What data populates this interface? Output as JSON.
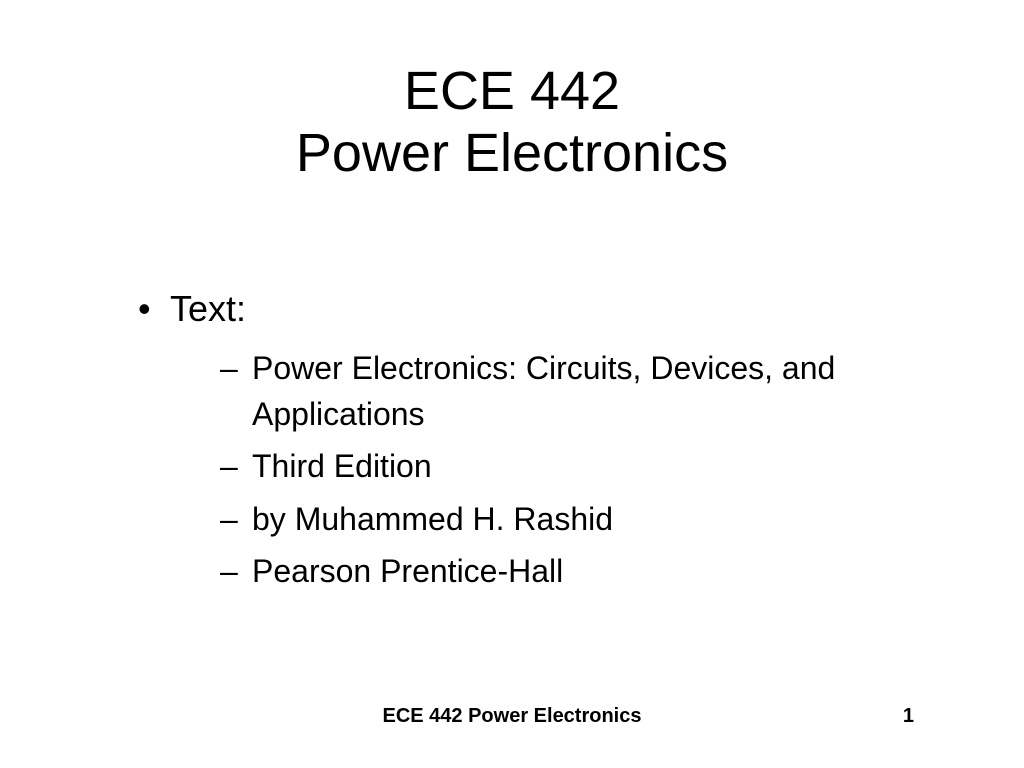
{
  "title": {
    "line1": "ECE 442",
    "line2": "Power Electronics"
  },
  "content": {
    "main_bullet": "Text:",
    "sub_items": [
      "Power Electronics:  Circuits, Devices, and Applications",
      "Third Edition",
      "by Muhammed H. Rashid",
      "Pearson Prentice-Hall"
    ]
  },
  "footer": {
    "text": "ECE 442 Power Electronics",
    "page_number": "1"
  },
  "styling": {
    "background_color": "#ffffff",
    "text_color": "#000000",
    "title_fontsize": 54,
    "bullet_fontsize": 36,
    "sub_bullet_fontsize": 32,
    "footer_fontsize": 20,
    "font_family": "Arial"
  }
}
